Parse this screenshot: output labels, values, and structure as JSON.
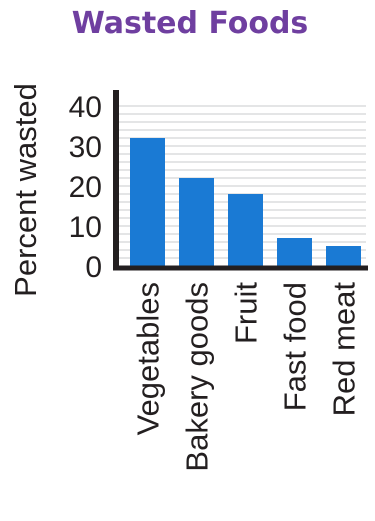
{
  "colors": {
    "title": "#6f3fa0",
    "bar": "#1a7ad4",
    "axis": "#231f20",
    "grid": "#c9cbcd",
    "text": "#231f20"
  },
  "chart_data": {
    "type": "bar",
    "title": "Wasted Foods",
    "xlabel": "",
    "ylabel": "Percent wasted",
    "categories": [
      "Vegetables",
      "Bakery goods",
      "Fruit",
      "Fast food",
      "Red meat"
    ],
    "values": [
      32,
      22,
      18,
      7,
      5
    ],
    "ylim": [
      0,
      40
    ],
    "yticks": [
      "0",
      "10",
      "20",
      "30",
      "40"
    ],
    "grid": true,
    "legend": "none"
  }
}
